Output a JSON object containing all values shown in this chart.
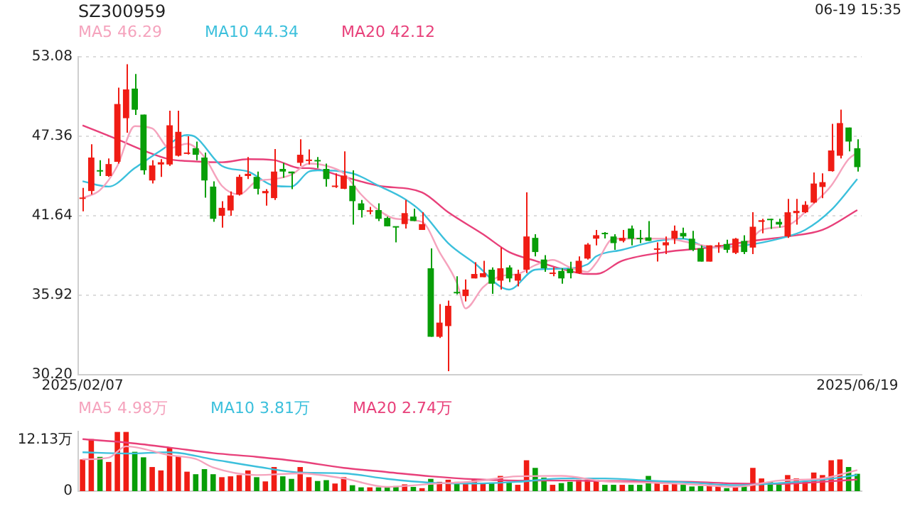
{
  "chart_data": [
    {
      "type": "candlestick",
      "title": "SZ300959",
      "annotations": [
        "06-19 15:35"
      ],
      "legend": "top left",
      "grid": "y",
      "categories": [
        "2025/02/07",
        null,
        null,
        null,
        null,
        null,
        null,
        null,
        null,
        null,
        null,
        null,
        null,
        null,
        null,
        null,
        null,
        null,
        null,
        null,
        null,
        null,
        null,
        null,
        null,
        null,
        null,
        null,
        null,
        null,
        null,
        null,
        null,
        null,
        null,
        null,
        null,
        null,
        null,
        null,
        null,
        null,
        null,
        null,
        null,
        null,
        null,
        null,
        null,
        null,
        null,
        null,
        null,
        null,
        null,
        null,
        null,
        null,
        null,
        null,
        null,
        null,
        null,
        null,
        null,
        null,
        null,
        null,
        null,
        null,
        null,
        null,
        null,
        null,
        null,
        null,
        null,
        null,
        null,
        null,
        null,
        null,
        null,
        null,
        null,
        null,
        null,
        null,
        null,
        "2025/06/19"
      ],
      "ylim": [
        30.2,
        53.08
      ],
      "yticks": [
        {
          "value": 30.2,
          "label": "30.20"
        },
        35.92,
        41.64,
        47.36,
        53.08
      ],
      "series": [
        {
          "ohlc": [
            [
              42.85,
              43.64,
              41.96,
              42.95
            ],
            [
              43.42,
              46.79,
              43.17,
              45.83
            ],
            [
              44.91,
              45.64,
              44.5,
              44.82
            ],
            [
              44.5,
              45.77,
              44.44,
              45.36
            ],
            [
              45.52,
              50.86,
              45.39,
              49.68
            ],
            [
              48.66,
              52.54,
              47.61,
              50.73
            ],
            [
              50.79,
              51.84,
              48.89,
              49.27
            ],
            [
              48.92,
              48.92,
              44.6,
              44.91
            ],
            [
              44.18,
              45.64,
              43.96,
              45.26
            ],
            [
              45.33,
              45.71,
              44.44,
              45.49
            ],
            [
              45.33,
              49.2,
              45.23,
              48.15
            ],
            [
              45.96,
              49.2,
              45.9,
              47.68
            ],
            [
              46.09,
              47.36,
              46.05,
              46.18
            ],
            [
              46.5,
              46.98,
              45.64,
              46.03
            ],
            [
              45.83,
              46.18,
              42.94,
              44.18
            ],
            [
              43.74,
              44.12,
              41.2,
              41.42
            ],
            [
              41.64,
              42.69,
              40.78,
              42.21
            ],
            [
              42.02,
              43.39,
              41.64,
              43.1
            ],
            [
              43.17,
              44.6,
              43.1,
              44.44
            ],
            [
              44.5,
              45.87,
              44.28,
              44.66
            ],
            [
              44.44,
              44.82,
              43.17,
              43.58
            ],
            [
              43.26,
              43.55,
              42.37,
              43.42
            ],
            [
              42.91,
              46.44,
              42.78,
              44.82
            ],
            [
              45.01,
              45.45,
              44.37,
              44.82
            ],
            [
              44.82,
              44.82,
              43.55,
              44.69
            ],
            [
              45.45,
              47.14,
              45.23,
              46.03
            ],
            [
              45.58,
              46.41,
              45.33,
              45.64
            ],
            [
              45.61,
              45.87,
              45.07,
              45.55
            ],
            [
              45.01,
              45.39,
              43.74,
              44.28
            ],
            [
              43.71,
              44.69,
              43.64,
              43.77
            ],
            [
              43.58,
              46.28,
              43.55,
              44.53
            ],
            [
              43.8,
              44.91,
              41.0,
              42.69
            ],
            [
              42.53,
              42.78,
              41.51,
              42.05
            ],
            [
              41.93,
              42.28,
              41.74,
              42.01
            ],
            [
              42.05,
              42.53,
              41.26,
              41.42
            ],
            [
              41.48,
              41.58,
              40.88,
              40.88
            ],
            [
              40.85,
              40.85,
              39.73,
              40.79
            ],
            [
              41.04,
              42.78,
              40.72,
              41.83
            ],
            [
              41.58,
              42.15,
              41.26,
              41.26
            ],
            [
              40.62,
              41.89,
              40.62,
              41.04
            ],
            [
              37.86,
              39.29,
              32.93,
              32.93
            ],
            [
              32.93,
              35.28,
              32.84,
              33.95
            ],
            [
              33.7,
              35.54,
              30.45,
              35.16
            ],
            [
              36.12,
              37.29,
              35.99,
              36.06
            ],
            [
              35.86,
              37.06,
              35.47,
              36.33
            ],
            [
              37.13,
              38.3,
              37.13,
              37.45
            ],
            [
              37.22,
              38.4,
              37.22,
              37.51
            ],
            [
              37.76,
              37.92,
              36.02,
              36.75
            ],
            [
              36.97,
              39.35,
              36.33,
              37.86
            ],
            [
              37.92,
              38.08,
              36.87,
              37.13
            ],
            [
              36.97,
              37.76,
              36.56,
              37.45
            ],
            [
              37.76,
              43.32,
              37.51,
              40.15
            ],
            [
              40.05,
              40.31,
              38.72,
              39.03
            ],
            [
              38.49,
              38.81,
              37.6,
              37.86
            ],
            [
              37.45,
              37.92,
              37.29,
              37.55
            ],
            [
              37.67,
              37.86,
              36.75,
              37.13
            ],
            [
              37.83,
              38.33,
              37.13,
              37.51
            ],
            [
              37.51,
              38.72,
              37.45,
              38.4
            ],
            [
              38.56,
              39.67,
              38.49,
              39.57
            ],
            [
              39.99,
              40.62,
              39.51,
              40.24
            ],
            [
              40.4,
              40.46,
              40.0,
              40.31
            ],
            [
              40.15,
              40.31,
              39.19,
              39.67
            ],
            [
              39.83,
              40.62,
              39.73,
              40.05
            ],
            [
              40.72,
              40.94,
              39.51,
              39.99
            ],
            [
              40.05,
              40.62,
              39.67,
              39.95
            ],
            [
              40.08,
              41.26,
              39.83,
              39.83
            ],
            [
              39.19,
              39.73,
              38.34,
              39.29
            ],
            [
              39.51,
              40.15,
              38.88,
              39.73
            ],
            [
              39.99,
              40.94,
              39.61,
              40.56
            ],
            [
              40.4,
              40.78,
              39.99,
              40.15
            ],
            [
              39.99,
              40.56,
              39.1,
              39.19
            ],
            [
              39.29,
              39.51,
              38.34,
              38.34
            ],
            [
              38.34,
              39.51,
              38.34,
              39.51
            ],
            [
              39.42,
              39.73,
              38.97,
              39.51
            ],
            [
              39.61,
              39.92,
              38.97,
              39.19
            ],
            [
              38.97,
              40.05,
              38.88,
              39.99
            ],
            [
              39.83,
              40.24,
              38.88,
              39.03
            ],
            [
              39.35,
              41.89,
              38.88,
              40.85
            ],
            [
              41.2,
              41.42,
              40.37,
              41.32
            ],
            [
              41.39,
              41.42,
              40.69,
              41.32
            ],
            [
              41.2,
              41.42,
              40.78,
              41.01
            ],
            [
              40.15,
              42.85,
              40.05,
              41.89
            ],
            [
              41.83,
              42.85,
              41.0,
              41.99
            ],
            [
              41.89,
              42.69,
              41.83,
              42.43
            ],
            [
              42.59,
              44.75,
              42.53,
              43.96
            ],
            [
              43.71,
              44.69,
              42.91,
              44.06
            ],
            [
              44.85,
              48.25,
              44.82,
              46.34
            ],
            [
              45.96,
              49.27,
              45.77,
              48.31
            ],
            [
              47.99,
              47.99,
              46.28,
              46.98
            ],
            [
              46.5,
              47.14,
              44.82,
              45.14
            ]
          ],
          "colors": [
            "#f01c14",
            "#f01c14",
            "#089e08",
            "#f01c14",
            "#f01c14",
            "#f01c14",
            "#089e08",
            "#089e08",
            "#f01c14",
            "#f01c14",
            "#f01c14",
            "#f01c14",
            "#f01c14",
            "#089e08",
            "#089e08",
            "#089e08",
            "#f01c14",
            "#f01c14",
            "#f01c14",
            "#f01c14",
            "#089e08",
            "#f01c14",
            "#f01c14",
            "#089e08",
            "#089e08",
            "#f01c14",
            "#f01c14",
            "#089e08",
            "#089e08",
            "#f01c14",
            "#f01c14",
            "#089e08",
            "#089e08",
            "#f01c14",
            "#089e08",
            "#089e08",
            "#089e08",
            "#f01c14",
            "#089e08",
            "#f01c14",
            "#089e08",
            "#f01c14",
            "#f01c14",
            "#089e08",
            "#f01c14",
            "#f01c14",
            "#f01c14",
            "#089e08",
            "#f01c14",
            "#089e08",
            "#f01c14",
            "#f01c14",
            "#089e08",
            "#089e08",
            "#f01c14",
            "#089e08",
            "#089e08",
            "#f01c14",
            "#f01c14",
            "#f01c14",
            "#089e08",
            "#089e08",
            "#f01c14",
            "#089e08",
            "#089e08",
            "#089e08",
            "#f01c14",
            "#f01c14",
            "#f01c14",
            "#089e08",
            "#089e08",
            "#089e08",
            "#f01c14",
            "#f01c14",
            "#089e08",
            "#f01c14",
            "#089e08",
            "#f01c14",
            "#f01c14",
            "#089e08",
            "#089e08",
            "#f01c14",
            "#f01c14",
            "#f01c14",
            "#f01c14",
            "#f01c14",
            "#f01c14",
            "#f01c14",
            "#089e08",
            "#089e08"
          ]
        },
        {
          "type": "line",
          "name": "MA5 46.29",
          "color": "#f5a3bd",
          "values": [
            42.91,
            null,
            43.48,
            null,
            45.23,
            null,
            48.09,
            null,
            47.93,
            null,
            46.5,
            null,
            46.82,
            null,
            45.87,
            null,
            43.8,
            null,
            43.17,
            null,
            44.12,
            null,
            44.28,
            null,
            44.6,
            null,
            45.39,
            null,
            45.23,
            null,
            44.69,
            null,
            43.17,
            null,
            42.05,
            null,
            41.42,
            null,
            null,
            41.2,
            null,
            39.03,
            null,
            36.81,
            34.97,
            null,
            36.49,
            null,
            37.29,
            null,
            37.45,
            null,
            38.08,
            null,
            38.46,
            null,
            37.92,
            null,
            37.6,
            38.24,
            null,
            39.99,
            null,
            null,
            39.99,
            null,
            null,
            39.99,
            null,
            null,
            39.67,
            null,
            null,
            39.35,
            null,
            null,
            39.51,
            null,
            40.62,
            null,
            null,
            40.94,
            null,
            null,
            42.53,
            null,
            43.8,
            null,
            45.71,
            46.18
          ]
        },
        {
          "type": "line",
          "name": "MA10 44.34",
          "color": "#3cc0dc",
          "values": [
            44.12,
            null,
            null,
            43.74,
            null,
            null,
            45.07,
            null,
            null,
            46.34,
            null,
            null,
            47.45,
            47.3,
            null,
            null,
            45.23,
            null,
            null,
            44.82,
            null,
            null,
            43.8,
            null,
            43.74,
            null,
            44.82,
            44.91,
            null,
            null,
            null,
            44.69,
            null,
            null,
            43.8,
            null,
            null,
            42.85,
            null,
            41.89,
            null,
            null,
            39.67,
            null,
            null,
            38.24,
            null,
            null,
            null,
            36.33,
            null,
            null,
            37.76,
            null,
            null,
            37.83,
            null,
            null,
            38.14,
            38.72,
            null,
            null,
            39.19,
            null,
            null,
            null,
            39.83,
            null,
            null,
            39.99,
            null,
            null,
            39.35,
            null,
            null,
            null,
            39.51,
            null,
            null,
            null,
            39.99,
            null,
            null,
            40.62,
            null,
            null,
            42.05,
            null,
            null,
            44.28
          ]
        },
        {
          "type": "line",
          "name": "MA20 42.12",
          "color": "#e8407a",
          "values": [
            48.15,
            null,
            null,
            null,
            47.14,
            null,
            null,
            46.34,
            null,
            null,
            45.71,
            null,
            null,
            45.55,
            null,
            null,
            45.49,
            null,
            null,
            45.71,
            null,
            null,
            45.64,
            null,
            null,
            45.07,
            45.07,
            null,
            null,
            null,
            44.44,
            null,
            null,
            null,
            43.8,
            null,
            null,
            null,
            null,
            43.32,
            null,
            null,
            41.89,
            null,
            null,
            null,
            40.31,
            null,
            null,
            39.03,
            null,
            null,
            38.4,
            null,
            null,
            37.83,
            null,
            null,
            37.45,
            37.45,
            null,
            null,
            38.4,
            null,
            null,
            null,
            null,
            39.03,
            null,
            null,
            null,
            null,
            39.35,
            null,
            null,
            null,
            null,
            39.83,
            null,
            null,
            null,
            40.15,
            null,
            null,
            null,
            40.62,
            null,
            null,
            null,
            42.05
          ]
        }
      ]
    },
    {
      "type": "bar",
      "legend": "top left",
      "tick_labels": "y",
      "categories": [
        null,
        null,
        null,
        null,
        null,
        null,
        null,
        null,
        null,
        null,
        null,
        null,
        null,
        null,
        null,
        null,
        null,
        null,
        null,
        null,
        null,
        null,
        null,
        null,
        null,
        null,
        null,
        null,
        null,
        null,
        null,
        null,
        null,
        null,
        null,
        null,
        null,
        null,
        null,
        null,
        null,
        null,
        null,
        null,
        null,
        null,
        null,
        null,
        null,
        null,
        null,
        null,
        null,
        null,
        null,
        null,
        null,
        null,
        null,
        null,
        null,
        null,
        null,
        null,
        null,
        null,
        null,
        null,
        null,
        null,
        null,
        null,
        null,
        null,
        null,
        null,
        null,
        null,
        null,
        null,
        null,
        null,
        null,
        null,
        null,
        null,
        null,
        null,
        null,
        null
      ],
      "ylim": [
        0,
        14.1
      ],
      "yticks": [
        0,
        {
          "value": 12.13,
          "label": "12.13万"
        }
      ],
      "series": [
        {
          "values": [
            7.5,
            12.3,
            8.1,
            6.9,
            14.0,
            14.0,
            9.3,
            8.0,
            5.7,
            4.9,
            10.3,
            8.3,
            4.6,
            4.0,
            5.2,
            4.0,
            3.3,
            3.5,
            3.8,
            4.9,
            3.3,
            2.3,
            5.7,
            3.5,
            2.9,
            5.7,
            3.3,
            2.4,
            2.6,
            1.8,
            3.3,
            1.4,
            0.9,
            0.9,
            0.9,
            0.9,
            1.2,
            1.6,
            1.0,
            0.7,
            2.9,
            2.2,
            2.7,
            2.2,
            1.7,
            2.7,
            2.0,
            1.9,
            3.6,
            2.2,
            1.5,
            7.3,
            5.5,
            3.2,
            1.5,
            1.9,
            2.2,
            2.7,
            2.7,
            2.7,
            1.5,
            1.5,
            1.5,
            1.5,
            1.5,
            3.6,
            1.9,
            1.5,
            1.9,
            1.5,
            1.1,
            1.2,
            1.2,
            1.1,
            0.7,
            1.1,
            1.1,
            5.5,
            3.0,
            2.2,
            1.5,
            3.8,
            3.0,
            2.2,
            4.4,
            3.8,
            7.3,
            7.5,
            5.7,
            4.1
          ],
          "colors": [
            "#f01c14",
            "#f01c14",
            "#089e08",
            "#f01c14",
            "#f01c14",
            "#f01c14",
            "#089e08",
            "#089e08",
            "#f01c14",
            "#f01c14",
            "#f01c14",
            "#f01c14",
            "#f01c14",
            "#089e08",
            "#089e08",
            "#089e08",
            "#f01c14",
            "#f01c14",
            "#f01c14",
            "#f01c14",
            "#089e08",
            "#f01c14",
            "#f01c14",
            "#089e08",
            "#089e08",
            "#f01c14",
            "#f01c14",
            "#089e08",
            "#089e08",
            "#f01c14",
            "#f01c14",
            "#089e08",
            "#089e08",
            "#f01c14",
            "#089e08",
            "#089e08",
            "#089e08",
            "#f01c14",
            "#089e08",
            "#f01c14",
            "#089e08",
            "#f01c14",
            "#f01c14",
            "#089e08",
            "#f01c14",
            "#f01c14",
            "#f01c14",
            "#089e08",
            "#f01c14",
            "#089e08",
            "#f01c14",
            "#f01c14",
            "#089e08",
            "#089e08",
            "#f01c14",
            "#089e08",
            "#089e08",
            "#f01c14",
            "#f01c14",
            "#f01c14",
            "#089e08",
            "#089e08",
            "#f01c14",
            "#089e08",
            "#089e08",
            "#089e08",
            "#f01c14",
            "#f01c14",
            "#f01c14",
            "#089e08",
            "#089e08",
            "#089e08",
            "#f01c14",
            "#f01c14",
            "#089e08",
            "#f01c14",
            "#089e08",
            "#f01c14",
            "#f01c14",
            "#089e08",
            "#089e08",
            "#f01c14",
            "#f01c14",
            "#f01c14",
            "#f01c14",
            "#f01c14",
            "#f01c14",
            "#f01c14",
            "#089e08",
            "#089e08"
          ]
        },
        {
          "type": "line",
          "name": "MA5 4.98万",
          "color": "#f5a3bd",
          "values": [
            7.5,
            null,
            null,
            7.9,
            null,
            10.6,
            null,
            null,
            null,
            null,
            8.5,
            null,
            null,
            7.6,
            null,
            5.6,
            null,
            null,
            null,
            null,
            3.8,
            null,
            null,
            null,
            null,
            4.2,
            null,
            null,
            null,
            null,
            3.0,
            null,
            null,
            null,
            null,
            1.0,
            null,
            null,
            null,
            null,
            1.7,
            null,
            null,
            null,
            null,
            2.3,
            null,
            null,
            null,
            null,
            3.5,
            null,
            null,
            null,
            null,
            3.6,
            null,
            null,
            null,
            null,
            2.3,
            null,
            null,
            null,
            null,
            2.0,
            null,
            null,
            null,
            null,
            1.6,
            null,
            null,
            null,
            null,
            1.0,
            null,
            null,
            null,
            null,
            2.5,
            null,
            null,
            null,
            null,
            3.0,
            null,
            null,
            null,
            4.98
          ]
        },
        {
          "type": "line",
          "name": "MA10 3.81万",
          "color": "#3cc0dc",
          "values": [
            9.2,
            null,
            null,
            null,
            null,
            8.9,
            null,
            null,
            null,
            null,
            9.2,
            null,
            null,
            null,
            null,
            7.5,
            null,
            null,
            null,
            null,
            5.8,
            null,
            null,
            null,
            null,
            4.4,
            null,
            null,
            null,
            null,
            4.2,
            null,
            null,
            null,
            null,
            2.9,
            null,
            null,
            null,
            null,
            2.0,
            null,
            null,
            null,
            null,
            1.8,
            null,
            null,
            null,
            null,
            2.2,
            null,
            null,
            null,
            null,
            3.0,
            null,
            null,
            null,
            null,
            3.0,
            null,
            null,
            null,
            null,
            2.5,
            null,
            null,
            null,
            null,
            2.0,
            null,
            null,
            null,
            null,
            1.4,
            null,
            null,
            null,
            null,
            1.9,
            null,
            null,
            null,
            null,
            2.7,
            null,
            null,
            null,
            3.81
          ]
        },
        {
          "type": "line",
          "name": "MA20 2.74万",
          "color": "#e8407a",
          "values": [
            12.3,
            null,
            null,
            null,
            null,
            11.5,
            null,
            null,
            null,
            null,
            10.3,
            null,
            null,
            null,
            null,
            9.0,
            null,
            null,
            null,
            null,
            8.1,
            null,
            null,
            null,
            null,
            7.0,
            null,
            null,
            null,
            null,
            5.5,
            null,
            null,
            null,
            null,
            4.5,
            null,
            null,
            null,
            null,
            3.5,
            null,
            null,
            null,
            null,
            2.8,
            null,
            null,
            null,
            null,
            2.5,
            null,
            null,
            null,
            null,
            2.5,
            null,
            null,
            null,
            null,
            2.4,
            null,
            null,
            null,
            null,
            2.3,
            null,
            null,
            null,
            null,
            2.2,
            null,
            null,
            null,
            null,
            1.8,
            null,
            null,
            null,
            null,
            1.7,
            null,
            null,
            null,
            null,
            2.2,
            null,
            null,
            null,
            2.74
          ]
        }
      ]
    }
  ]
}
